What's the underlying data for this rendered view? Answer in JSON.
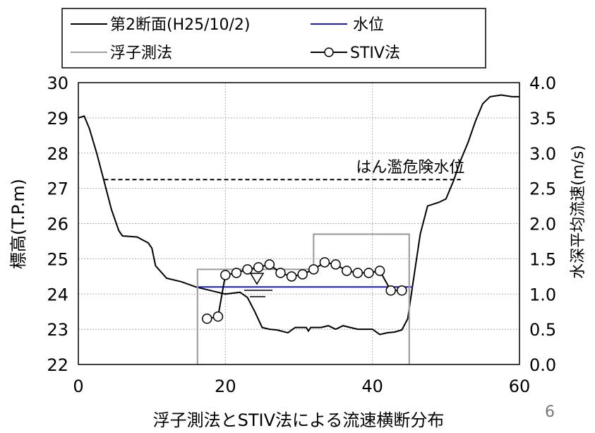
{
  "chart_data": {
    "type": "line",
    "xlabel": "浮子測法とSTIV法による流速横断分布",
    "ylabel_left": "標高(T.P.m)",
    "ylabel_right": "水深平均流速(m/s)",
    "xlim": [
      0,
      60
    ],
    "ylim_left": [
      22,
      30
    ],
    "ylim_right": [
      0.0,
      4.0
    ],
    "x_ticks": [
      "0",
      "20",
      "40",
      "60"
    ],
    "y_left_ticks": [
      "22",
      "23",
      "24",
      "25",
      "26",
      "27",
      "28",
      "29",
      "30"
    ],
    "y_right_ticks": [
      "0.0",
      "0.5",
      "1.0",
      "1.5",
      "2.0",
      "2.5",
      "3.0",
      "3.5",
      "4.0"
    ],
    "grid": true,
    "legend_position": "top",
    "series": [
      {
        "name": "第2断面(H25/10/2)",
        "color": "#000000",
        "axis": "left",
        "points": [
          [
            0,
            29
          ],
          [
            0.8,
            29.05
          ],
          [
            1.5,
            28.7
          ],
          [
            2.5,
            28.0
          ],
          [
            3.5,
            27.2
          ],
          [
            4.5,
            26.4
          ],
          [
            5.5,
            25.8
          ],
          [
            6,
            25.65
          ],
          [
            8,
            25.62
          ],
          [
            9.5,
            25.45
          ],
          [
            10,
            25.3
          ],
          [
            10.5,
            24.8
          ],
          [
            12,
            24.45
          ],
          [
            14,
            24.35
          ],
          [
            16,
            24.2
          ],
          [
            18,
            24.1
          ],
          [
            20,
            24.0
          ],
          [
            22,
            24.05
          ],
          [
            23,
            23.9
          ],
          [
            24,
            23.5
          ],
          [
            25,
            23.05
          ],
          [
            26,
            23.0
          ],
          [
            27,
            22.98
          ],
          [
            28.5,
            22.9
          ],
          [
            29.5,
            23.05
          ],
          [
            31,
            23.05
          ],
          [
            31.3,
            22.95
          ],
          [
            31.6,
            23.05
          ],
          [
            33,
            23.05
          ],
          [
            34,
            23.1
          ],
          [
            35,
            23.0
          ],
          [
            36,
            23.1
          ],
          [
            37,
            23.05
          ],
          [
            38,
            23.0
          ],
          [
            40,
            23.0
          ],
          [
            41,
            22.85
          ],
          [
            42,
            22.9
          ],
          [
            43,
            22.92
          ],
          [
            44,
            22.98
          ],
          [
            44.8,
            23.3
          ],
          [
            45.5,
            24.3
          ],
          [
            46.5,
            25.7
          ],
          [
            47.5,
            26.5
          ],
          [
            49,
            26.6
          ],
          [
            50,
            26.7
          ],
          [
            51,
            27.2
          ],
          [
            52,
            27.8
          ],
          [
            53,
            28.3
          ],
          [
            54,
            28.9
          ],
          [
            55,
            29.4
          ],
          [
            56,
            29.6
          ],
          [
            57.5,
            29.65
          ],
          [
            59,
            29.6
          ],
          [
            60,
            29.6
          ]
        ]
      },
      {
        "name": "水位",
        "color": "#1a1acc",
        "axis": "left",
        "points": [
          [
            16.2,
            24.2
          ],
          [
            45.5,
            24.2
          ]
        ]
      },
      {
        "name": "浮子測法",
        "color": "#a0a0a0",
        "axis": "right",
        "points": [
          [
            16.2,
            0.0
          ],
          [
            16.2,
            1.35
          ],
          [
            32,
            1.35
          ],
          [
            32,
            1.85
          ],
          [
            45,
            1.85
          ],
          [
            45,
            0.0
          ]
        ]
      },
      {
        "name": "STIV法",
        "color": "#000000",
        "axis": "right",
        "marker": "circle",
        "points": [
          [
            17.5,
            0.65
          ],
          [
            19,
            0.68
          ],
          [
            20,
            1.27
          ],
          [
            21.5,
            1.3
          ],
          [
            23,
            1.35
          ],
          [
            24.5,
            1.38
          ],
          [
            26,
            1.42
          ],
          [
            27.5,
            1.3
          ],
          [
            29,
            1.25
          ],
          [
            30.5,
            1.28
          ],
          [
            32,
            1.35
          ],
          [
            33.5,
            1.45
          ],
          [
            35,
            1.42
          ],
          [
            36.5,
            1.33
          ],
          [
            38,
            1.3
          ],
          [
            39.5,
            1.3
          ],
          [
            41,
            1.33
          ],
          [
            42.5,
            1.05
          ],
          [
            44,
            1.05
          ]
        ]
      },
      {
        "name": "はん濫危険水位",
        "color": "#000000",
        "axis": "left",
        "dashed": true,
        "points": [
          [
            3.5,
            27.25
          ],
          [
            52,
            27.25
          ]
        ]
      }
    ],
    "annotations": [
      {
        "text": "はん濫危険水位",
        "x": 49,
        "y": 27.45,
        "axis": "left"
      }
    ]
  },
  "page_number": "6"
}
